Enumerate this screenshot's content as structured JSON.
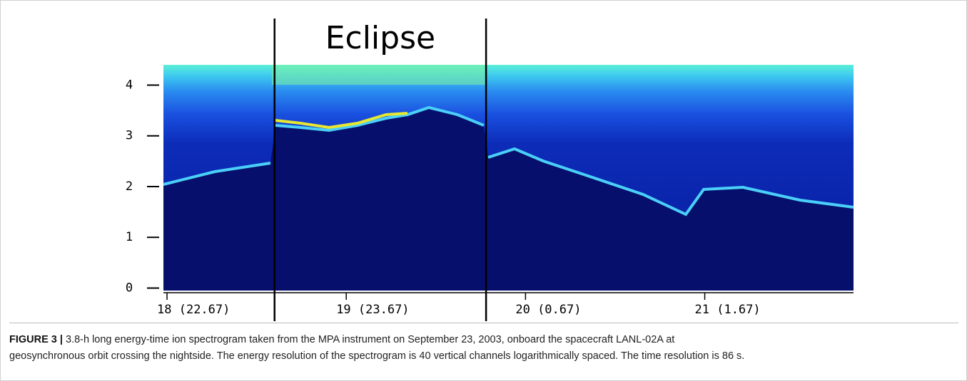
{
  "chart_data": {
    "type": "spectrogram",
    "annotation": {
      "label": "Eclipse",
      "start": 18.6,
      "end": 19.78
    },
    "xlim": [
      17.98,
      21.83
    ],
    "xticks": [
      {
        "value": 18,
        "label": "18 (22.67)"
      },
      {
        "value": 19,
        "label": "19 (23.67)"
      },
      {
        "value": 20,
        "label": "20 (0.67)"
      },
      {
        "value": 21,
        "label": "21 (1.67)"
      }
    ],
    "ylim": [
      -0.05,
      4.4
    ],
    "yticks": [
      0,
      1,
      2,
      3,
      4
    ]
  },
  "caption": {
    "label": "FIGURE 3 |",
    "lines": [
      "3.8-h long energy-time ion spectrogram taken from the MPA instrument on September 23, 2003, onboard the spacecraft LANL-02A at",
      "geosynchronous orbit crossing the nightside. The energy resolution of the spectrogram is 40 vertical channels logarithmically spaced. The time resolution is 86 s."
    ]
  }
}
